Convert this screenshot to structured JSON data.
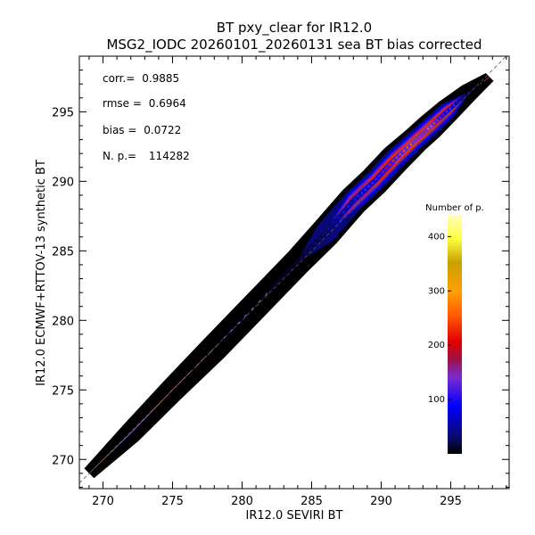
{
  "chart_data": {
    "type": "heatmap",
    "title": "BT pxy_clear for IR12.0",
    "subtitle": "MSG2_IODC 20260101_20260131 sea BT bias corrected",
    "xlabel": "IR12.0 SEVIRI BT",
    "ylabel": "IR12.0 ECMWF+RTTOV-13 synthetic BT",
    "xlim": [
      268.3,
      299.2
    ],
    "ylim": [
      267.9,
      299.0
    ],
    "xticks": [
      270,
      275,
      280,
      285,
      290,
      295
    ],
    "yticks": [
      270,
      275,
      280,
      285,
      290,
      295
    ],
    "grid": false,
    "stats": [
      {
        "label": "corr.=",
        "value": "0.9885"
      },
      {
        "label": "rmse =",
        "value": "0.6964"
      },
      {
        "label": "bias =",
        "value": "0.0722"
      },
      {
        "label": "N. p.=",
        "value": "114282"
      }
    ],
    "colorbar": {
      "label": "Number of p.",
      "min": 0,
      "max": 440,
      "ticks": [
        100,
        200,
        300,
        400
      ]
    },
    "diagonal": [
      [
        268.3,
        268.3
      ],
      [
        299.0,
        299.0
      ]
    ],
    "ridge": [
      {
        "x": 269.0,
        "y": 269.0,
        "hw": 0.5,
        "peak": 2
      },
      {
        "x": 272.0,
        "y": 271.9,
        "hw": 0.8,
        "peak": 3
      },
      {
        "x": 275.0,
        "y": 275.0,
        "hw": 0.9,
        "peak": 5
      },
      {
        "x": 278.0,
        "y": 278.0,
        "hw": 1.0,
        "peak": 8
      },
      {
        "x": 281.0,
        "y": 281.1,
        "hw": 1.0,
        "peak": 14
      },
      {
        "x": 284.0,
        "y": 284.2,
        "hw": 1.0,
        "peak": 22
      },
      {
        "x": 286.0,
        "y": 286.3,
        "hw": 1.1,
        "peak": 55
      },
      {
        "x": 288.0,
        "y": 288.6,
        "hw": 1.1,
        "peak": 140
      },
      {
        "x": 289.5,
        "y": 290.0,
        "hw": 1.1,
        "peak": 230
      },
      {
        "x": 291.0,
        "y": 291.6,
        "hw": 1.1,
        "peak": 330
      },
      {
        "x": 292.5,
        "y": 293.0,
        "hw": 1.0,
        "peak": 400
      },
      {
        "x": 293.5,
        "y": 293.9,
        "hw": 1.0,
        "peak": 430
      },
      {
        "x": 294.8,
        "y": 295.1,
        "hw": 0.9,
        "peak": 240
      },
      {
        "x": 296.3,
        "y": 296.4,
        "hw": 0.7,
        "peak": 30
      },
      {
        "x": 297.8,
        "y": 297.5,
        "hw": 0.4,
        "peak": 3
      }
    ]
  }
}
